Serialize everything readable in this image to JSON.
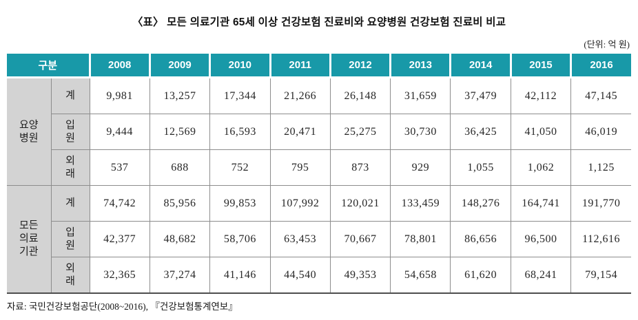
{
  "title": "〈표〉   모든 의료기관 65세 이상 건강보험 진료비와 요양병원 건강보험 진료비 비교",
  "unit_note": "(단위: 억 원)",
  "source": "자료: 국민건강보험공단(2008~2016), 『건강보험통계연보』",
  "colors": {
    "header_bg": "#1899A8",
    "header_text": "#FFFFFF",
    "label_bg": "#D3D3D3",
    "border": "#8C8C8C",
    "bottom_border": "#4D4D4D",
    "body_text": "#262626"
  },
  "table": {
    "corner_header": "구분",
    "years": [
      "2008",
      "2009",
      "2010",
      "2011",
      "2012",
      "2013",
      "2014",
      "2015",
      "2016"
    ],
    "groups": [
      {
        "label": "요양병원",
        "label_display": "요양\n병원",
        "rows": [
          {
            "label": "계",
            "label_display": "계",
            "values": [
              "9,981",
              "13,257",
              "17,344",
              "21,266",
              "26,148",
              "31,659",
              "37,479",
              "42,112",
              "47,145"
            ]
          },
          {
            "label": "입원",
            "label_display": "입\n원",
            "values": [
              "9,444",
              "12,569",
              "16,593",
              "20,471",
              "25,275",
              "30,730",
              "36,425",
              "41,050",
              "46,019"
            ]
          },
          {
            "label": "외래",
            "label_display": "외\n래",
            "values": [
              "537",
              "688",
              "752",
              "795",
              "873",
              "929",
              "1,055",
              "1,062",
              "1,125"
            ]
          }
        ]
      },
      {
        "label": "모든 의료기관",
        "label_display": "모든\n의료\n기관",
        "rows": [
          {
            "label": "계",
            "label_display": "계",
            "values": [
              "74,742",
              "85,956",
              "99,853",
              "107,992",
              "120,021",
              "133,459",
              "148,276",
              "164,741",
              "191,770"
            ]
          },
          {
            "label": "입원",
            "label_display": "입\n원",
            "values": [
              "42,377",
              "48,682",
              "58,706",
              "63,453",
              "70,667",
              "78,801",
              "86,656",
              "96,500",
              "112,616"
            ]
          },
          {
            "label": "외래",
            "label_display": "외\n래",
            "values": [
              "32,365",
              "37,274",
              "41,146",
              "44,540",
              "49,353",
              "54,658",
              "61,620",
              "68,241",
              "79,154"
            ]
          }
        ]
      }
    ]
  }
}
